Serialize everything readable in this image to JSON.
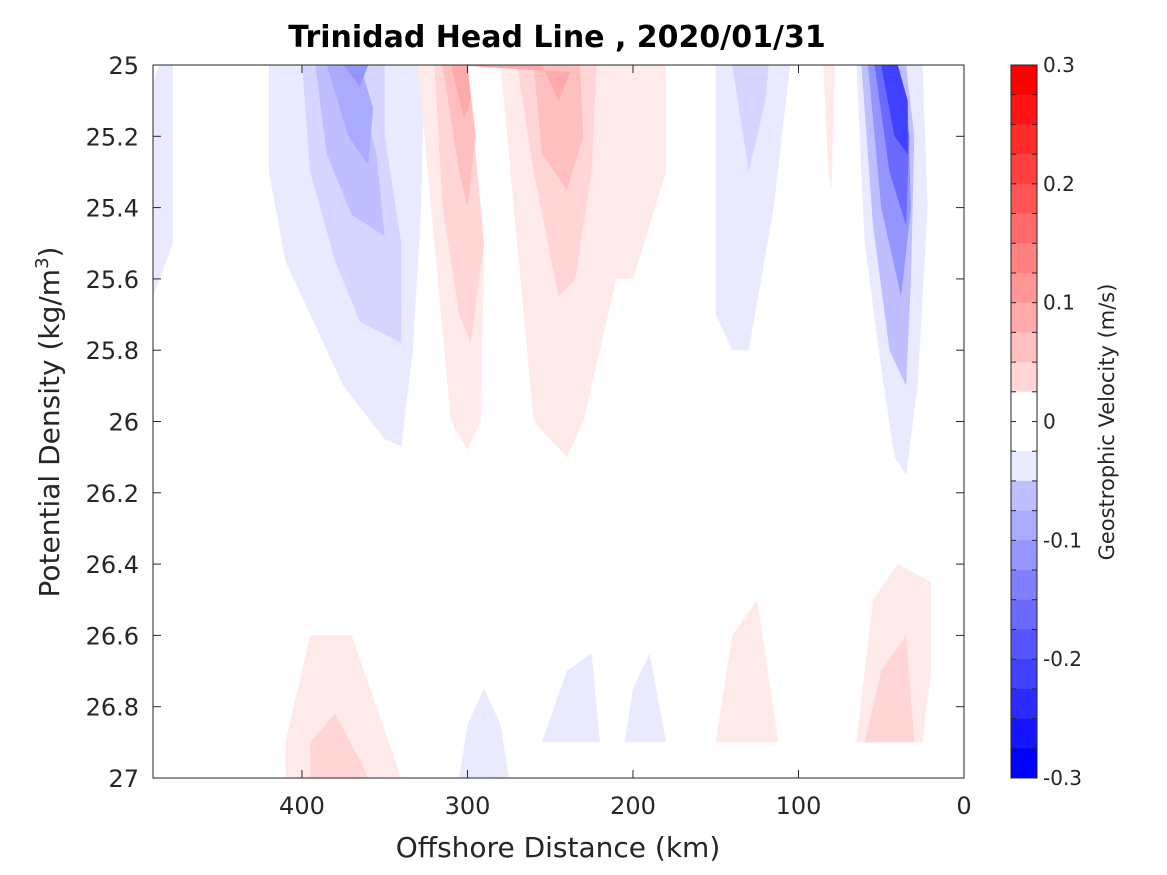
{
  "chart_data": {
    "type": "contour",
    "title": "Trinidad Head Line , 2020/01/31",
    "xlabel": "Offshore Distance (km)",
    "ylabel_main": "Potential Density (kg/m",
    "ylabel_sup": "3",
    "ylabel_end": ")",
    "xlim": [
      490,
      0
    ],
    "ylim": [
      25,
      27
    ],
    "y_reversed": true,
    "x_reversed": true,
    "xticks": [
      400,
      300,
      200,
      100,
      0
    ],
    "xtick_labels": [
      "400",
      "300",
      "200",
      "100",
      "0"
    ],
    "yticks": [
      25,
      25.2,
      25.4,
      25.6,
      25.8,
      26,
      26.2,
      26.4,
      26.6,
      26.8,
      27
    ],
    "ytick_labels": [
      "25",
      "25.2",
      "25.4",
      "25.6",
      "25.8",
      "26",
      "26.2",
      "26.4",
      "26.6",
      "26.8",
      "27"
    ],
    "grid": false,
    "colorbar": {
      "label": "Geostrophic Velocity (m/s)",
      "range": [
        -0.3,
        0.3
      ],
      "ticks": [
        0.3,
        0.2,
        0.1,
        0,
        -0.1,
        -0.2,
        -0.3
      ],
      "tick_labels": [
        "0.3",
        "0.2",
        "0.1",
        "0",
        "-0.1",
        "-0.2",
        "-0.3"
      ],
      "levels": 24,
      "colormap": "blue-white-red",
      "negative_color": "#0000ff",
      "positive_color": "#ff0000"
    },
    "features": [
      {
        "sign": "negative",
        "levels": 1,
        "poly": [
          [
            490,
            25.05
          ],
          [
            486,
            25
          ],
          [
            478,
            25
          ],
          [
            478,
            25.5
          ],
          [
            490,
            25.65
          ]
        ]
      },
      {
        "sign": "negative",
        "levels": 1,
        "poly": [
          [
            420,
            25
          ],
          [
            420,
            25.3
          ],
          [
            410,
            25.55
          ],
          [
            395,
            25.7
          ],
          [
            375,
            25.9
          ],
          [
            350,
            26.05
          ],
          [
            340,
            26.07
          ],
          [
            333,
            25.8
          ],
          [
            328,
            25.4
          ],
          [
            326,
            25
          ]
        ]
      },
      {
        "sign": "negative",
        "levels": 2,
        "poly": [
          [
            400,
            25
          ],
          [
            395,
            25.3
          ],
          [
            380,
            25.55
          ],
          [
            365,
            25.72
          ],
          [
            340,
            25.78
          ],
          [
            340,
            25.5
          ],
          [
            350,
            25.2
          ],
          [
            350,
            25
          ]
        ]
      },
      {
        "sign": "negative",
        "levels": 3,
        "poly": [
          [
            392,
            25
          ],
          [
            385,
            25.25
          ],
          [
            370,
            25.42
          ],
          [
            350,
            25.48
          ],
          [
            355,
            25.25
          ],
          [
            368,
            25
          ]
        ]
      },
      {
        "sign": "negative",
        "levels": 4,
        "poly": [
          [
            385,
            25
          ],
          [
            372,
            25.2
          ],
          [
            360,
            25.28
          ],
          [
            357,
            25.12
          ],
          [
            365,
            25
          ]
        ]
      },
      {
        "sign": "negative",
        "levels": 5,
        "poly": [
          [
            375,
            25
          ],
          [
            365,
            25.06
          ],
          [
            360,
            25
          ]
        ]
      },
      {
        "sign": "positive",
        "levels": 1,
        "poly": [
          [
            330,
            25
          ],
          [
            320,
            25.5
          ],
          [
            310,
            26
          ],
          [
            300,
            26.08
          ],
          [
            292,
            26
          ],
          [
            290,
            25.5
          ],
          [
            300,
            25
          ],
          [
            280,
            25
          ],
          [
            270,
            25.5
          ],
          [
            260,
            26
          ],
          [
            240,
            26.1
          ],
          [
            230,
            26
          ],
          [
            220,
            25.8
          ],
          [
            210,
            25.6
          ],
          [
            200,
            25.6
          ],
          [
            180,
            25.3
          ],
          [
            180,
            25
          ],
          [
            210,
            25
          ]
        ]
      },
      {
        "sign": "positive",
        "levels": 2,
        "poly": [
          [
            320,
            25
          ],
          [
            315,
            25.4
          ],
          [
            305,
            25.7
          ],
          [
            298,
            25.78
          ],
          [
            290,
            25.5
          ],
          [
            300,
            25
          ],
          [
            290,
            25
          ],
          [
            285,
            25
          ],
          [
            270,
            25
          ],
          [
            260,
            25.3
          ],
          [
            245,
            25.65
          ],
          [
            235,
            25.6
          ],
          [
            225,
            25.3
          ],
          [
            222,
            25
          ]
        ]
      },
      {
        "sign": "positive",
        "levels": 3,
        "poly": [
          [
            315,
            25
          ],
          [
            305,
            25.3
          ],
          [
            300,
            25.4
          ],
          [
            295,
            25.2
          ],
          [
            300,
            25
          ],
          [
            260,
            25
          ],
          [
            255,
            25.25
          ],
          [
            240,
            25.35
          ],
          [
            230,
            25.2
          ],
          [
            232,
            25
          ]
        ]
      },
      {
        "sign": "positive",
        "levels": 4,
        "poly": [
          [
            310,
            25
          ],
          [
            302,
            25.15
          ],
          [
            298,
            25.1
          ],
          [
            300,
            25
          ],
          [
            255,
            25
          ],
          [
            245,
            25.1
          ],
          [
            238,
            25.02
          ]
        ]
      },
      {
        "sign": "negative",
        "levels": 1,
        "poly": [
          [
            150,
            25
          ],
          [
            150,
            25.7
          ],
          [
            140,
            25.8
          ],
          [
            130,
            25.8
          ],
          [
            115,
            25.4
          ],
          [
            105,
            25
          ],
          [
            130,
            25
          ]
        ]
      },
      {
        "sign": "negative",
        "levels": 2,
        "poly": [
          [
            140,
            25
          ],
          [
            130,
            25.3
          ],
          [
            120,
            25.1
          ],
          [
            118,
            25
          ]
        ]
      },
      {
        "sign": "positive",
        "levels": 1,
        "poly": [
          [
            85,
            25
          ],
          [
            82,
            25.3
          ],
          [
            80,
            25.35
          ],
          [
            78,
            25
          ]
        ]
      },
      {
        "sign": "negative",
        "levels": 1,
        "poly": [
          [
            65,
            25
          ],
          [
            60,
            25.5
          ],
          [
            50,
            25.85
          ],
          [
            42,
            26.1
          ],
          [
            35,
            26.15
          ],
          [
            28,
            25.9
          ],
          [
            22,
            25.4
          ],
          [
            25,
            25
          ],
          [
            45,
            25
          ]
        ]
      },
      {
        "sign": "negative",
        "levels": 3,
        "poly": [
          [
            62,
            25
          ],
          [
            55,
            25.45
          ],
          [
            45,
            25.8
          ],
          [
            35,
            25.9
          ],
          [
            32,
            25.6
          ],
          [
            30,
            25.2
          ],
          [
            35,
            25
          ]
        ]
      },
      {
        "sign": "negative",
        "levels": 5,
        "poly": [
          [
            58,
            25
          ],
          [
            50,
            25.4
          ],
          [
            38,
            25.65
          ],
          [
            32,
            25.4
          ],
          [
            34,
            25.1
          ],
          [
            40,
            25
          ]
        ]
      },
      {
        "sign": "negative",
        "levels": 7,
        "poly": [
          [
            54,
            25
          ],
          [
            45,
            25.3
          ],
          [
            35,
            25.45
          ],
          [
            33,
            25.2
          ],
          [
            40,
            25
          ]
        ]
      },
      {
        "sign": "negative",
        "levels": 9,
        "poly": [
          [
            50,
            25
          ],
          [
            42,
            25.2
          ],
          [
            34,
            25.25
          ],
          [
            34,
            25.1
          ],
          [
            40,
            25
          ]
        ]
      },
      {
        "sign": "positive",
        "levels": 1,
        "poly": [
          [
            410,
            26.9
          ],
          [
            395,
            26.6
          ],
          [
            370,
            26.6
          ],
          [
            355,
            26.8
          ],
          [
            340,
            27
          ],
          [
            345,
            27
          ],
          [
            410,
            27
          ]
        ]
      },
      {
        "sign": "positive",
        "levels": 2,
        "poly": [
          [
            395,
            26.9
          ],
          [
            380,
            26.82
          ],
          [
            365,
            26.95
          ],
          [
            360,
            27
          ],
          [
            395,
            27
          ]
        ]
      },
      {
        "sign": "negative",
        "levels": 1,
        "poly": [
          [
            305,
            27
          ],
          [
            300,
            26.85
          ],
          [
            290,
            26.75
          ],
          [
            280,
            26.85
          ],
          [
            275,
            27
          ]
        ]
      },
      {
        "sign": "negative",
        "levels": 1,
        "poly": [
          [
            255,
            26.9
          ],
          [
            240,
            26.7
          ],
          [
            225,
            26.65
          ],
          [
            220,
            26.9
          ]
        ]
      },
      {
        "sign": "negative",
        "levels": 1,
        "poly": [
          [
            205,
            26.9
          ],
          [
            200,
            26.75
          ],
          [
            190,
            26.65
          ],
          [
            180,
            26.9
          ]
        ]
      },
      {
        "sign": "positive",
        "levels": 1,
        "poly": [
          [
            150,
            26.9
          ],
          [
            140,
            26.6
          ],
          [
            125,
            26.5
          ],
          [
            112,
            26.9
          ]
        ]
      },
      {
        "sign": "positive",
        "levels": 1,
        "poly": [
          [
            65,
            26.9
          ],
          [
            55,
            26.5
          ],
          [
            40,
            26.4
          ],
          [
            20,
            26.45
          ],
          [
            20,
            26.7
          ],
          [
            25,
            26.9
          ]
        ]
      },
      {
        "sign": "positive",
        "levels": 2,
        "poly": [
          [
            60,
            26.9
          ],
          [
            50,
            26.7
          ],
          [
            35,
            26.6
          ],
          [
            30,
            26.9
          ]
        ]
      }
    ]
  }
}
